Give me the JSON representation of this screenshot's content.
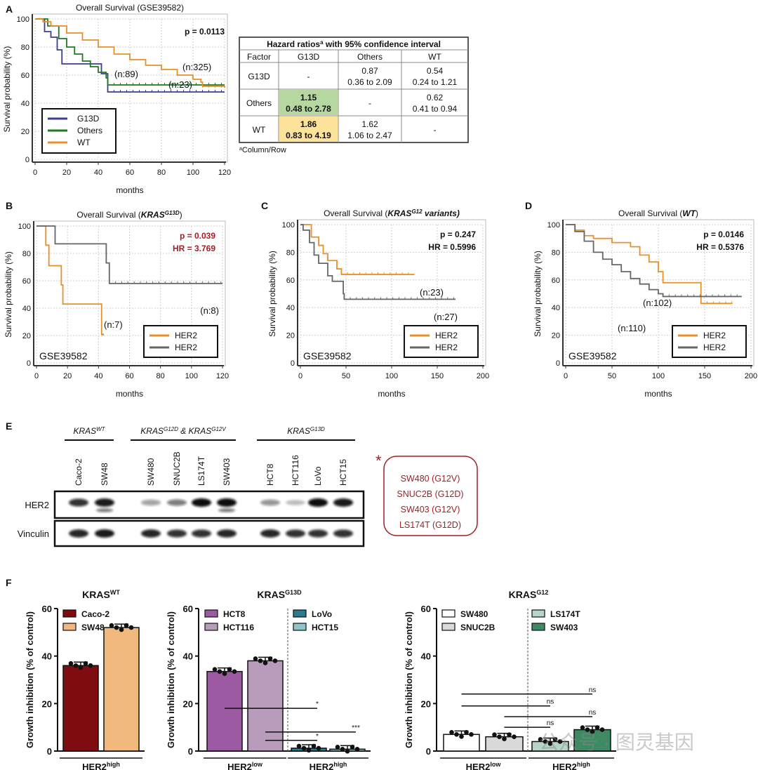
{
  "colors": {
    "g13d": "#3b3f8f",
    "others": "#1f7a1f",
    "wt": "#e8902a",
    "her2_high": "#e8902a",
    "her2_low": "#666666",
    "red": "#a31f24",
    "green_cell": "#b7d7a0",
    "yellow_cell": "#fde39a"
  },
  "watermark": "公众号 · 图灵基因",
  "panel_labels": [
    "A",
    "B",
    "C",
    "D",
    "E",
    "F"
  ],
  "km": [
    {
      "panel": "A",
      "title": "Overall Survival (GSE39582)",
      "title_parts": null,
      "xlabel": "months",
      "ylabel": "Survival probability (%)",
      "xlim": [
        0,
        120
      ],
      "ylim": [
        0,
        100
      ],
      "xticks": [
        "0",
        "20",
        "40",
        "60",
        "80",
        "100",
        "120"
      ],
      "yticks": [
        "0",
        "20",
        "40",
        "60",
        "80",
        "100"
      ],
      "stat1": "p = 0.0113",
      "stat2": "",
      "stat_color": "#111111",
      "dataset": "",
      "grid": true,
      "legend": "bottom-left",
      "series": [
        {
          "name": "G13D",
          "color": "#3b3f8f",
          "n": "(n:23)",
          "points": [
            [
              0,
              100
            ],
            [
              6,
              100
            ],
            [
              6,
              91
            ],
            [
              10,
              87
            ],
            [
              14,
              78
            ],
            [
              17,
              68
            ],
            [
              42,
              68
            ],
            [
              42,
              61
            ],
            [
              46,
              48
            ],
            [
              120,
              48
            ]
          ]
        },
        {
          "name": "Others",
          "color": "#1f7a1f",
          "n": "(n:89)",
          "points": [
            [
              0,
              100
            ],
            [
              8,
              95
            ],
            [
              15,
              86
            ],
            [
              20,
              80
            ],
            [
              25,
              75
            ],
            [
              30,
              70
            ],
            [
              35,
              66
            ],
            [
              40,
              62
            ],
            [
              45,
              58
            ],
            [
              46,
              53
            ],
            [
              120,
              53
            ]
          ]
        },
        {
          "name": "WT",
          "color": "#e8902a",
          "n": "(n:325)",
          "points": [
            [
              0,
              100
            ],
            [
              5,
              98
            ],
            [
              10,
              95
            ],
            [
              20,
              90
            ],
            [
              30,
              85
            ],
            [
              40,
              80
            ],
            [
              50,
              75
            ],
            [
              60,
              71
            ],
            [
              70,
              67
            ],
            [
              80,
              64
            ],
            [
              90,
              60
            ],
            [
              100,
              57
            ],
            [
              105,
              55
            ],
            [
              106,
              52
            ],
            [
              120,
              51
            ]
          ]
        }
      ]
    },
    {
      "panel": "B",
      "title": "Overall Survival (",
      "title_italic": "KRAS",
      "title_sup": "G13D",
      "title_end": ")",
      "xlabel": "months",
      "ylabel": "Survival probability (%)",
      "xlim": [
        0,
        120
      ],
      "ylim": [
        0,
        100
      ],
      "xticks": [
        "0",
        "20",
        "40",
        "60",
        "80",
        "100",
        "120"
      ],
      "yticks": [
        "0",
        "20",
        "40",
        "60",
        "80",
        "100"
      ],
      "stat1": "p = 0.039",
      "stat2": "HR = 3.769",
      "stat_color": "#a31f24",
      "dataset": "GSE39582",
      "grid": true,
      "legend": "bottom-right",
      "series": [
        {
          "name": "HER2",
          "sup": "High",
          "color": "#e8902a",
          "n": "(n:7)",
          "points": [
            [
              0,
              100
            ],
            [
              6,
              100
            ],
            [
              6,
              86
            ],
            [
              8,
              71
            ],
            [
              15,
              71
            ],
            [
              16,
              57
            ],
            [
              17,
              43
            ],
            [
              42,
              43
            ],
            [
              42,
              21
            ],
            [
              43,
              20
            ]
          ]
        },
        {
          "name": "HER2",
          "sup": "Low",
          "color": "#666666",
          "n": "(n:8)",
          "points": [
            [
              0,
              100
            ],
            [
              12,
              100
            ],
            [
              12,
              87
            ],
            [
              45,
              87
            ],
            [
              45,
              73
            ],
            [
              47,
              58
            ],
            [
              120,
              58
            ]
          ]
        }
      ]
    },
    {
      "panel": "C",
      "title": "Overall Survival (",
      "title_italic": "KRAS",
      "title_sup": "G12",
      "title_end": " variants)",
      "xlabel": "months",
      "ylabel": "Survival probability (%)",
      "xlim": [
        0,
        200
      ],
      "ylim": [
        0,
        100
      ],
      "xticks": [
        "0",
        "50",
        "100",
        "150",
        "200"
      ],
      "yticks": [
        "0",
        "20",
        "40",
        "60",
        "80",
        "100"
      ],
      "stat1": "p = 0.247",
      "stat2": "HR = 0.5996",
      "stat_color": "#111111",
      "dataset": "GSE39582",
      "grid": true,
      "legend": "bottom-right",
      "series": [
        {
          "name": "HER2",
          "sup": "High",
          "color": "#e8902a",
          "n": "(n:23)",
          "points": [
            [
              0,
              100
            ],
            [
              10,
              100
            ],
            [
              12,
              91
            ],
            [
              20,
              85
            ],
            [
              25,
              79
            ],
            [
              30,
              74
            ],
            [
              40,
              68
            ],
            [
              45,
              64
            ],
            [
              125,
              64
            ]
          ]
        },
        {
          "name": "HER2",
          "sup": "Low",
          "color": "#666666",
          "n": "(n:27)",
          "points": [
            [
              0,
              100
            ],
            [
              3,
              96
            ],
            [
              10,
              87
            ],
            [
              15,
              78
            ],
            [
              20,
              72
            ],
            [
              30,
              63
            ],
            [
              35,
              59
            ],
            [
              45,
              59
            ],
            [
              47,
              50
            ],
            [
              48,
              46
            ],
            [
              170,
              46
            ]
          ]
        }
      ]
    },
    {
      "panel": "D",
      "title": "Overall Survival (",
      "title_italic": "WT",
      "title_sup": "",
      "title_end": ")",
      "xlabel": "months",
      "ylabel": "Survival probability (%)",
      "xlim": [
        0,
        200
      ],
      "ylim": [
        0,
        100
      ],
      "xticks": [
        "0",
        "50",
        "100",
        "150",
        "200"
      ],
      "yticks": [
        "0",
        "20",
        "40",
        "60",
        "80",
        "100"
      ],
      "stat1": "p = 0.0146",
      "stat2": "HR = 0.5376",
      "stat_color": "#111111",
      "dataset": "GSE39582",
      "grid": true,
      "legend": "bottom-right",
      "series": [
        {
          "name": "HER2",
          "sup": "High",
          "color": "#e8902a",
          "n": "(n:102)",
          "points": [
            [
              0,
              100
            ],
            [
              10,
              96
            ],
            [
              20,
              92
            ],
            [
              30,
              90
            ],
            [
              50,
              87
            ],
            [
              70,
              84
            ],
            [
              80,
              78
            ],
            [
              90,
              73
            ],
            [
              100,
              66
            ],
            [
              105,
              58
            ],
            [
              145,
              58
            ],
            [
              146,
              43
            ],
            [
              180,
              43
            ]
          ]
        },
        {
          "name": "HER2",
          "sup": "Low",
          "color": "#666666",
          "n": "(n:110)",
          "points": [
            [
              0,
              100
            ],
            [
              10,
              95
            ],
            [
              20,
              88
            ],
            [
              30,
              80
            ],
            [
              40,
              75
            ],
            [
              50,
              71
            ],
            [
              60,
              66
            ],
            [
              70,
              61
            ],
            [
              80,
              57
            ],
            [
              90,
              53
            ],
            [
              100,
              50
            ],
            [
              105,
              48
            ],
            [
              190,
              48
            ]
          ]
        }
      ]
    }
  ],
  "hr_table": {
    "title": "Hazard ratios",
    "title_sup": "a",
    "title_end": " with 95% confidence interval",
    "header": [
      "Factor",
      "G13D",
      "Others",
      "WT"
    ],
    "rows": [
      {
        "factor": "G13D",
        "cells": [
          [
            "-",
            ""
          ],
          [
            "0.87",
            "0.36 to 2.09"
          ],
          [
            "0.54",
            "0.24 to 1.21"
          ]
        ]
      },
      {
        "factor": "Others",
        "cells": [
          [
            "1.15",
            "0.48 to 2.78"
          ],
          [
            "-",
            ""
          ],
          [
            "0.62",
            "0.41 to 0.94"
          ]
        ]
      },
      {
        "factor": "WT",
        "cells": [
          [
            "1.86",
            "0.83 to 4.19"
          ],
          [
            "1.62",
            "1.06 to 2.47"
          ],
          [
            "-",
            ""
          ]
        ]
      }
    ],
    "footnote_sup": "a",
    "footnote": "Column/Row"
  },
  "blot": {
    "groups": [
      {
        "base": "KRAS",
        "sup": "WT"
      },
      {
        "base": "KRAS",
        "sup": "G12D",
        "mid": " & KRAS",
        "sup2": "G12V"
      },
      {
        "base": "KRAS",
        "sup": "G13D"
      }
    ],
    "lanes": [
      "Caco-2",
      "SW48",
      "SW480",
      "SNUC2B",
      "LS174T",
      "SW403",
      "HCT8",
      "HCT116",
      "LoVo",
      "HCT15"
    ],
    "rows": [
      "HER2",
      "Vinculin"
    ],
    "her2_band_intensity": [
      0.85,
      0.95,
      0.4,
      0.55,
      1.0,
      1.0,
      0.45,
      0.25,
      1.0,
      0.95
    ],
    "vinculin_band_intensity": [
      0.9,
      0.95,
      0.9,
      0.85,
      0.85,
      0.9,
      0.9,
      0.85,
      0.85,
      0.85
    ],
    "note_mark": "*",
    "note_lines": [
      "SW480 (G12V)",
      "SNUC2B (G12D)",
      "SW403 (G12V)",
      "LS174T (G12D)"
    ]
  },
  "chart_data": [
    {
      "type": "bar",
      "panel": "F1",
      "title": "KRAS",
      "title_sup": "WT",
      "ylabel": "Growth inhibition (% of control)",
      "ylim": [
        0,
        60
      ],
      "yticks": [
        "0",
        "20",
        "40",
        "60"
      ],
      "categories": [
        "Caco-2",
        "SW48"
      ],
      "values": [
        36,
        52
      ],
      "colors": [
        "#7f0d10",
        "#f2b97f"
      ],
      "groups": [
        {
          "label": "HER2",
          "sup": "high",
          "span": [
            0,
            1
          ]
        }
      ],
      "divider_after": null,
      "significance": []
    },
    {
      "type": "bar",
      "panel": "F2",
      "title": "KRAS",
      "title_sup": "G13D",
      "ylabel": "Growth inhibition (% of control)",
      "ylim": [
        0,
        60
      ],
      "yticks": [
        "0",
        "20",
        "40",
        "60"
      ],
      "categories": [
        "HCT8",
        "HCT116",
        "LoVo",
        "HCT15"
      ],
      "values": [
        33.5,
        38,
        1.2,
        0.8
      ],
      "colors": [
        "#9c5aa3",
        "#b99bbb",
        "#2b7a8f",
        "#8fc6c9"
      ],
      "groups": [
        {
          "label": "HER2",
          "sup": "low",
          "span": [
            0,
            1
          ]
        },
        {
          "label": "HER2",
          "sup": "high",
          "span": [
            2,
            3
          ]
        }
      ],
      "divider_after": 1,
      "significance": [
        {
          "from": 0,
          "to": 2,
          "y": 18,
          "label": "*"
        },
        {
          "from": 1,
          "to": 3,
          "y": 8,
          "label": "***"
        },
        {
          "from": 1,
          "to": 2,
          "y": 4.5,
          "label": "*"
        }
      ]
    },
    {
      "type": "bar",
      "panel": "F3",
      "title": "KRAS",
      "title_sup": "G12",
      "ylabel": "Growth inhibition (% of control)",
      "ylim": [
        0,
        60
      ],
      "yticks": [
        "0",
        "20",
        "40",
        "60"
      ],
      "categories": [
        "SW480",
        "SNUC2B",
        "LS174T",
        "SW403"
      ],
      "values": [
        7,
        6,
        4,
        9
      ],
      "colors": [
        "#ffffff",
        "#d9d9d9",
        "#b7d5c6",
        "#3e8a65"
      ],
      "groups": [
        {
          "label": "HER2",
          "sup": "low",
          "span": [
            0,
            1
          ]
        },
        {
          "label": "HER2",
          "sup": "high",
          "span": [
            2,
            3
          ]
        }
      ],
      "divider_after": 1,
      "significance": [
        {
          "from": 0,
          "to": 3,
          "y": 24,
          "label": "ns"
        },
        {
          "from": 0,
          "to": 2,
          "y": 19,
          "label": "ns"
        },
        {
          "from": 1,
          "to": 3,
          "y": 14.5,
          "label": "ns"
        },
        {
          "from": 1,
          "to": 2,
          "y": 10,
          "label": "ns"
        }
      ]
    }
  ]
}
